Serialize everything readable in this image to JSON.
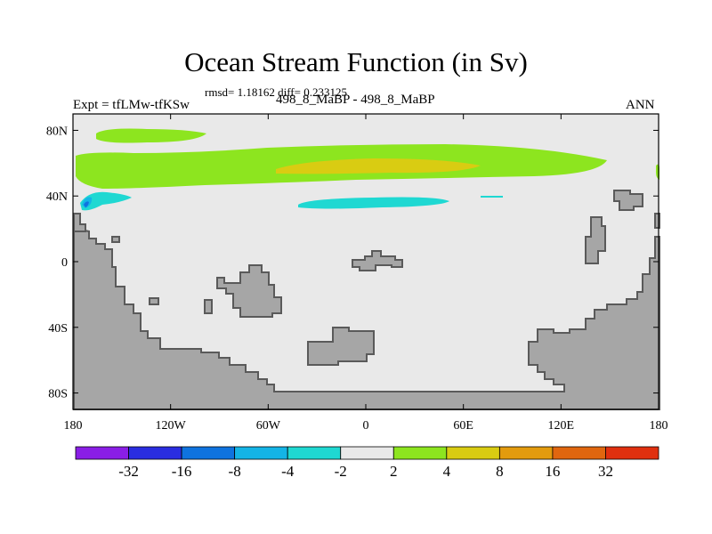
{
  "chart_data": {
    "type": "heatmap",
    "title": "Ocean Stream Function (in Sv)",
    "stats": "rmsd= 1.18162 diff= 0.233125",
    "left_string": "Expt = tfLMw-tfKSw",
    "center_string": "498_8_MaBP - 498_8_MaBP",
    "right_string": "ANN",
    "x_ticks": [
      "180",
      "120W",
      "60W",
      "0",
      "60E",
      "120E",
      "180"
    ],
    "y_ticks": [
      "80N",
      "40N",
      "0",
      "40S",
      "80S"
    ],
    "xlim": [
      -180,
      180
    ],
    "ylim": [
      -90,
      90
    ],
    "grid": false,
    "colorbar": {
      "levels": [
        "-32",
        "-16",
        "-8",
        "-4",
        "-2",
        "2",
        "4",
        "8",
        "16",
        "32"
      ],
      "colors": [
        "#8a1ee6",
        "#2a2de0",
        "#0f73df",
        "#14b4e6",
        "#1fd8d2",
        "#e9e9e9",
        "#8de51f",
        "#d9cc12",
        "#e39b0e",
        "#e0660f",
        "#e0300f"
      ]
    },
    "background_bin": "-2 to 2",
    "features": [
      {
        "name": "positive cell 50N-70N",
        "bin": "2 to 4",
        "color": "#8de51f"
      },
      {
        "name": "positive core 55N-60N",
        "bin": "4 to 8",
        "color": "#d9cc12"
      },
      {
        "name": "negative cell 35N-40N",
        "bin": "-4 to -2",
        "color": "#1fd8d2"
      },
      {
        "name": "negative core western boundary 35N",
        "bin": "-8 to -4",
        "color": "#14b4e6"
      }
    ],
    "land_color": "#a6a6a6"
  }
}
